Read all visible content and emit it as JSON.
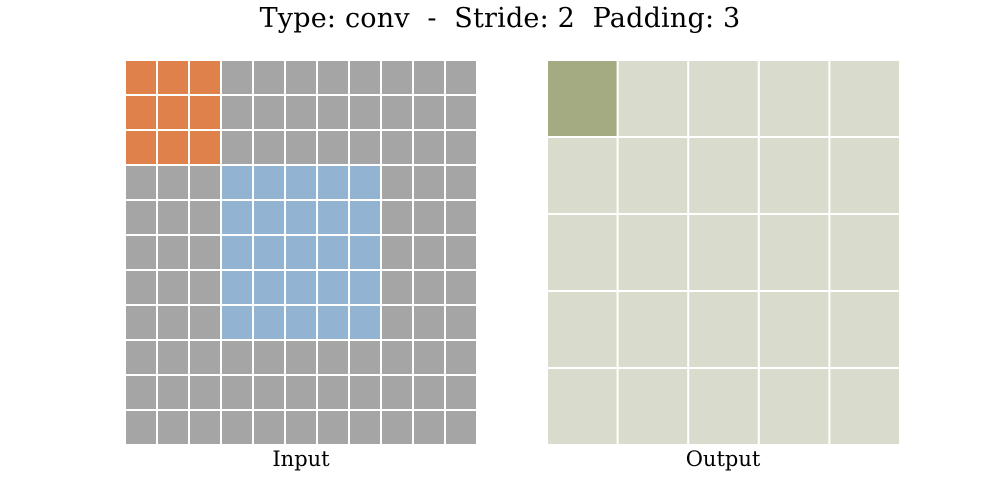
{
  "title": "Type: conv  -  Stride: 2  Padding: 3",
  "colors": {
    "background": "#ffffff",
    "grid_line": "#ffffff",
    "input_cell": "#a5a5a5",
    "input_padding_region_marker": "#a5a5a5",
    "input_core": "#93b3d2",
    "kernel": "#df814a",
    "output_cell": "#d9dccc",
    "output_active": "#a4ab82"
  },
  "input": {
    "label": "Input",
    "grid_size": 11,
    "padding": 3,
    "core_size": 5,
    "kernel": {
      "row": 0,
      "col": 0,
      "size": 3
    }
  },
  "output": {
    "label": "Output",
    "grid_size": 5,
    "active": {
      "row": 0,
      "col": 0
    }
  }
}
